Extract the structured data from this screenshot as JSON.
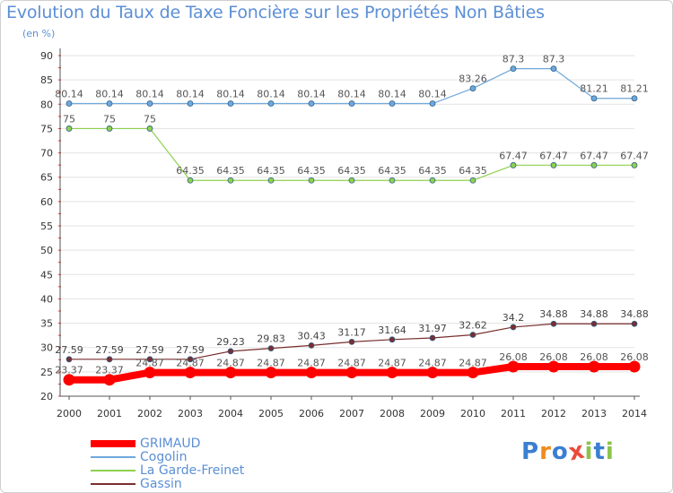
{
  "chart_data": {
    "type": "line",
    "title": "Evolution du Taux de Taxe Foncière sur les Propriétés Non Bâties",
    "ylabel": "(en %)",
    "xlabel": "",
    "ylim": [
      20,
      90
    ],
    "y_ticks": [
      20,
      25,
      30,
      35,
      40,
      45,
      50,
      55,
      60,
      65,
      70,
      75,
      80,
      85,
      90
    ],
    "x": [
      "2000",
      "2001",
      "2002",
      "2003",
      "2004",
      "2005",
      "2006",
      "2007",
      "2008",
      "2009",
      "2010",
      "2011",
      "2012",
      "2013",
      "2014"
    ],
    "grid": "horizontal",
    "legend_position": "bottom-left",
    "series": [
      {
        "name": "Cogolin",
        "color": "#6fa8dc",
        "values": [
          80.14,
          80.14,
          80.14,
          80.14,
          80.14,
          80.14,
          80.14,
          80.14,
          80.14,
          80.14,
          83.26,
          87.3,
          87.3,
          81.21,
          81.21
        ],
        "labels": [
          "80.14",
          "80.14",
          "80.14",
          "80.14",
          "80.14",
          "80.14",
          "80.14",
          "80.14",
          "80.14",
          "80.14",
          "83.26",
          "87.3",
          "87.3",
          "81.21",
          "81.21"
        ]
      },
      {
        "name": "La Garde-Freinet",
        "color": "#8fd14f",
        "values": [
          75,
          75,
          75,
          64.35,
          64.35,
          64.35,
          64.35,
          64.35,
          64.35,
          64.35,
          64.35,
          67.47,
          67.47,
          67.47,
          67.47
        ],
        "labels": [
          "75",
          "75",
          "75",
          "64.35",
          "64.35",
          "64.35",
          "64.35",
          "64.35",
          "64.35",
          "64.35",
          "64.35",
          "67.47",
          "67.47",
          "67.47",
          "67.47"
        ]
      },
      {
        "name": "Gassin",
        "color": "#7a2e2e",
        "values": [
          27.59,
          27.59,
          27.59,
          27.59,
          29.23,
          29.83,
          30.43,
          31.17,
          31.64,
          31.97,
          32.62,
          34.2,
          34.88,
          34.88,
          34.88
        ],
        "labels": [
          "27.59",
          "27.59",
          "27.59",
          "27.59",
          "29.23",
          "29.83",
          "30.43",
          "31.17",
          "31.64",
          "31.97",
          "32.62",
          "34.2",
          "34.88",
          "34.88",
          "34.88"
        ]
      },
      {
        "name": "GRIMAUD",
        "color": "#ff0000",
        "values": [
          23.37,
          23.37,
          24.87,
          24.87,
          24.87,
          24.87,
          24.87,
          24.87,
          24.87,
          24.87,
          24.87,
          26.08,
          26.08,
          26.08,
          26.08
        ],
        "labels": [
          "23.37",
          "23.37",
          "24.87",
          "24.87",
          "24.87",
          "24.87",
          "24.87",
          "24.87",
          "24.87",
          "24.87",
          "24.87",
          "26.08",
          "26.08",
          "26.08",
          "26.08"
        ]
      }
    ],
    "legend": [
      "GRIMAUD",
      "Cogolin",
      "La Garde-Freinet",
      "Gassin"
    ]
  },
  "logo": {
    "text": "Proxiti",
    "letters": [
      "P",
      "r",
      "o",
      "x",
      "i",
      "t",
      "i"
    ],
    "colors": [
      "#3a7fd1",
      "#f08a1c",
      "#3a7fd1",
      "#e94b3c",
      "#8bc34a",
      "#3a7fd1",
      "#8bc34a"
    ]
  }
}
